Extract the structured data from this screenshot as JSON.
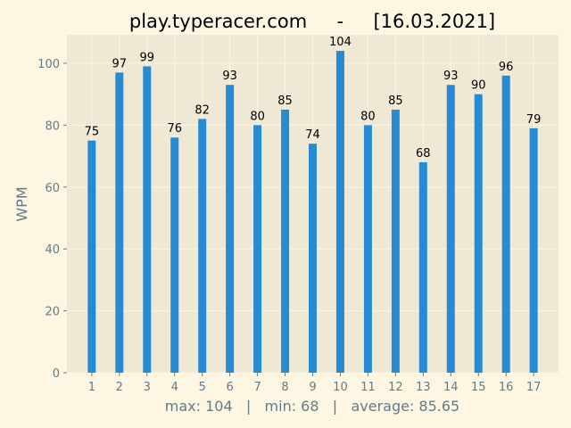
{
  "chart_data": {
    "type": "bar",
    "title": "play.typeracer.com     -     [16.03.2021]",
    "xlabel": "max: 104   |   min: 68   |   average: 85.65",
    "ylabel": "WPM",
    "categories": [
      "1",
      "2",
      "3",
      "4",
      "5",
      "6",
      "7",
      "8",
      "9",
      "10",
      "11",
      "12",
      "13",
      "14",
      "15",
      "16",
      "17"
    ],
    "values": [
      75,
      97,
      99,
      76,
      82,
      93,
      80,
      85,
      74,
      104,
      80,
      85,
      68,
      93,
      90,
      96,
      79
    ],
    "yticks": [
      0,
      20,
      40,
      60,
      80,
      100
    ],
    "ylim": [
      0,
      109.2
    ],
    "xlim": [
      0.1,
      17.9
    ],
    "grid": true,
    "legend": "none",
    "colors": {
      "bar": "#268bd2",
      "plot_background": "#eee8d5",
      "page_background": "#fdf6e3",
      "grid": "#fdf6e3",
      "axis_text": "#657b83",
      "label_text": "#000000"
    }
  }
}
